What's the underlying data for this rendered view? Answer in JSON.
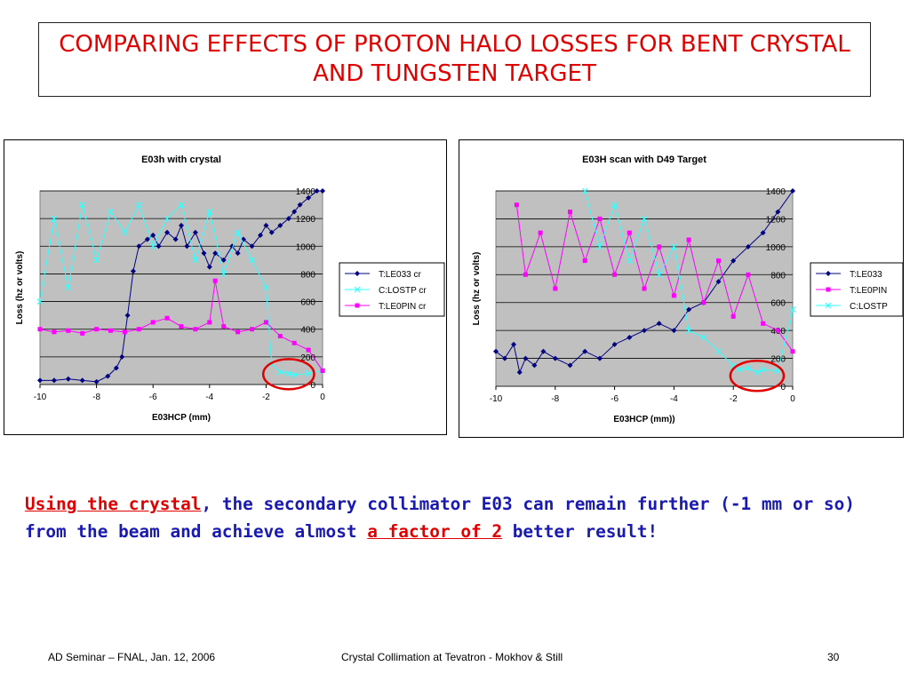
{
  "slide": {
    "title": "COMPARING EFFECTS OF PROTON HALO LOSSES FOR BENT CRYSTAL AND TUNGSTEN TARGET",
    "body": {
      "highlight1": "Using the crystal",
      "text1": ", the secondary collimator E03 can remain further (-1 mm or so) from the beam and achieve almost ",
      "highlight2": "a factor of 2",
      "text2": " better result!"
    },
    "colors": {
      "title": "#e00000",
      "body": "#1a1ab0",
      "highlight": "#e00000",
      "plot_bg": "#c0c0c0",
      "navy": "#000080",
      "magenta": "#ff00ff",
      "cyan": "#33ffff",
      "circle": "#e00000"
    },
    "footer": {
      "left": "AD Seminar – FNAL, Jan. 12, 2006",
      "center": "Crystal Collimation at Tevatron -  Mokhov & Still",
      "page": "30"
    }
  },
  "chart_data": [
    {
      "type": "line",
      "title": "E03h with crystal",
      "xlabel": "E03HCP (mm)",
      "ylabel": "Loss (hz or volts)",
      "xlim": [
        -10,
        0
      ],
      "ylim": [
        0,
        1400
      ],
      "xticks": [
        "-10",
        "-8",
        "-6",
        "-4",
        "-2",
        "0"
      ],
      "yticks": [
        "0",
        "200",
        "400",
        "600",
        "800",
        "1000",
        "1200",
        "1400"
      ],
      "grid": true,
      "legend_position": "right",
      "annotation": "red circle around -2 to -0.5 mm near 100",
      "series": [
        {
          "name": "T:LE033 cr",
          "color": "#000080",
          "marker": "diamond",
          "x": [
            -10,
            -9.5,
            -9,
            -8.5,
            -8,
            -7.6,
            -7.3,
            -7.1,
            -6.9,
            -6.7,
            -6.5,
            -6.2,
            -6,
            -5.8,
            -5.5,
            -5.2,
            -5,
            -4.8,
            -4.5,
            -4.2,
            -4,
            -3.8,
            -3.5,
            -3.2,
            -3,
            -2.8,
            -2.5,
            -2.2,
            -2,
            -1.8,
            -1.5,
            -1.2,
            -1,
            -0.8,
            -0.5,
            -0.2,
            0
          ],
          "values": [
            30,
            30,
            40,
            30,
            20,
            60,
            120,
            200,
            500,
            820,
            1000,
            1050,
            1080,
            1000,
            1100,
            1050,
            1150,
            1000,
            1100,
            950,
            850,
            950,
            900,
            1000,
            950,
            1050,
            1000,
            1080,
            1150,
            1100,
            1150,
            1200,
            1250,
            1300,
            1350,
            1400,
            1420
          ]
        },
        {
          "name": "C:LOSTP cr",
          "color": "#33ffff",
          "marker": "x",
          "x": [
            -10,
            -9.5,
            -9,
            -8.5,
            -8,
            -7.5,
            -7,
            -6.5,
            -6,
            -5.5,
            -5,
            -4.5,
            -4,
            -3.5,
            -3,
            -2.5,
            -2,
            -1.8,
            -1.5,
            -1.2,
            -1,
            -0.5,
            0
          ],
          "values": [
            600,
            1200,
            700,
            1300,
            900,
            1250,
            1100,
            1300,
            1000,
            1200,
            1300,
            900,
            1250,
            800,
            1100,
            900,
            700,
            150,
            90,
            80,
            70,
            80,
            100
          ]
        },
        {
          "name": "T:LE0PIN cr",
          "color": "#ff00ff",
          "marker": "square",
          "x": [
            -10,
            -9.5,
            -9,
            -8.5,
            -8,
            -7.5,
            -7,
            -6.5,
            -6,
            -5.5,
            -5,
            -4.5,
            -4,
            -3.8,
            -3.5,
            -3,
            -2.5,
            -2,
            -1.5,
            -1,
            -0.5,
            0
          ],
          "values": [
            400,
            380,
            390,
            370,
            400,
            390,
            380,
            400,
            450,
            480,
            420,
            400,
            450,
            750,
            420,
            380,
            400,
            450,
            350,
            300,
            250,
            100
          ]
        }
      ]
    },
    {
      "type": "line",
      "title": "E03H scan with D49 Target",
      "xlabel": "E03HCP (mm))",
      "ylabel": "Loss (hz or volts)",
      "xlim": [
        -10,
        0
      ],
      "ylim": [
        0,
        1400
      ],
      "xticks": [
        "-10",
        "-8",
        "-6",
        "-4",
        "-2",
        "0"
      ],
      "yticks": [
        "0",
        "200",
        "400",
        "600",
        "800",
        "1000",
        "1200",
        "1400"
      ],
      "grid": true,
      "legend_position": "right",
      "annotation": "red circle around -2 to -0.5 mm near 100",
      "series": [
        {
          "name": "T:LE033",
          "color": "#000080",
          "marker": "diamond",
          "x": [
            -10,
            -9.7,
            -9.4,
            -9.2,
            -9,
            -8.7,
            -8.4,
            -8,
            -7.5,
            -7,
            -6.5,
            -6,
            -5.5,
            -5,
            -4.5,
            -4,
            -3.5,
            -3,
            -2.5,
            -2,
            -1.5,
            -1,
            -0.5,
            0
          ],
          "values": [
            250,
            200,
            300,
            100,
            200,
            150,
            250,
            200,
            150,
            250,
            200,
            300,
            350,
            400,
            450,
            400,
            550,
            600,
            750,
            900,
            1000,
            1100,
            1250,
            1450
          ]
        },
        {
          "name": "T:LE0PIN",
          "color": "#ff00ff",
          "marker": "square",
          "x": [
            -9.3,
            -9,
            -8.5,
            -8,
            -7.5,
            -7,
            -6.5,
            -6,
            -5.5,
            -5,
            -4.5,
            -4,
            -3.5,
            -3,
            -2.5,
            -2,
            -1.5,
            -1,
            -0.5,
            0
          ],
          "values": [
            1300,
            800,
            1100,
            700,
            1250,
            900,
            1200,
            800,
            1100,
            700,
            1000,
            650,
            1050,
            600,
            900,
            500,
            800,
            450,
            400,
            250
          ]
        },
        {
          "name": "C:LOSTP",
          "color": "#33ffff",
          "marker": "x",
          "x": [
            -7,
            -6.5,
            -6,
            -5.5,
            -5,
            -4.5,
            -4,
            -3.5,
            -3,
            -2.5,
            -2,
            -1.8,
            -1.5,
            -1.2,
            -1,
            -0.5,
            0
          ],
          "values": [
            1400,
            1000,
            1300,
            900,
            1200,
            800,
            1000,
            400,
            350,
            250,
            150,
            120,
            130,
            100,
            120,
            110,
            550
          ]
        }
      ]
    }
  ]
}
